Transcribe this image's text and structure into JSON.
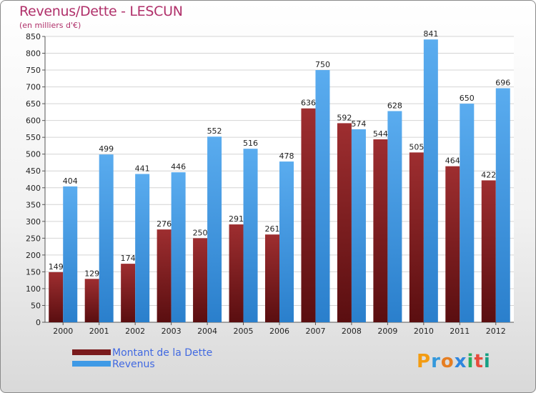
{
  "chart_data": {
    "type": "bar",
    "title": "Revenus/Dette - LESCUN",
    "subtitle": "(en milliers d'€)",
    "categories": [
      "2000",
      "2001",
      "2002",
      "2003",
      "2004",
      "2005",
      "2006",
      "2007",
      "2008",
      "2009",
      "2010",
      "2011",
      "2012"
    ],
    "series": [
      {
        "name": "Montant de la Dette",
        "color": "#7a1a1c",
        "values": [
          149,
          129,
          174,
          276,
          250,
          291,
          261,
          636,
          592,
          544,
          505,
          464,
          422
        ]
      },
      {
        "name": "Revenus",
        "color": "#3f9ae6",
        "values": [
          404,
          499,
          441,
          446,
          552,
          516,
          478,
          750,
          574,
          628,
          841,
          650,
          696
        ]
      }
    ],
    "ylim": [
      0,
      850
    ],
    "yticks": [
      0,
      50,
      100,
      150,
      200,
      250,
      300,
      350,
      400,
      450,
      500,
      550,
      600,
      650,
      700,
      750,
      800,
      850
    ],
    "grid": true,
    "legend": "bottom-left"
  },
  "logo": {
    "letters": [
      "P",
      "r",
      "o",
      "x",
      "i",
      "t",
      "i"
    ],
    "colors": [
      "#f39c12",
      "#3498db",
      "#e67e22",
      "#2e86de",
      "#27ae60",
      "#e74c3c",
      "#16a085"
    ]
  }
}
